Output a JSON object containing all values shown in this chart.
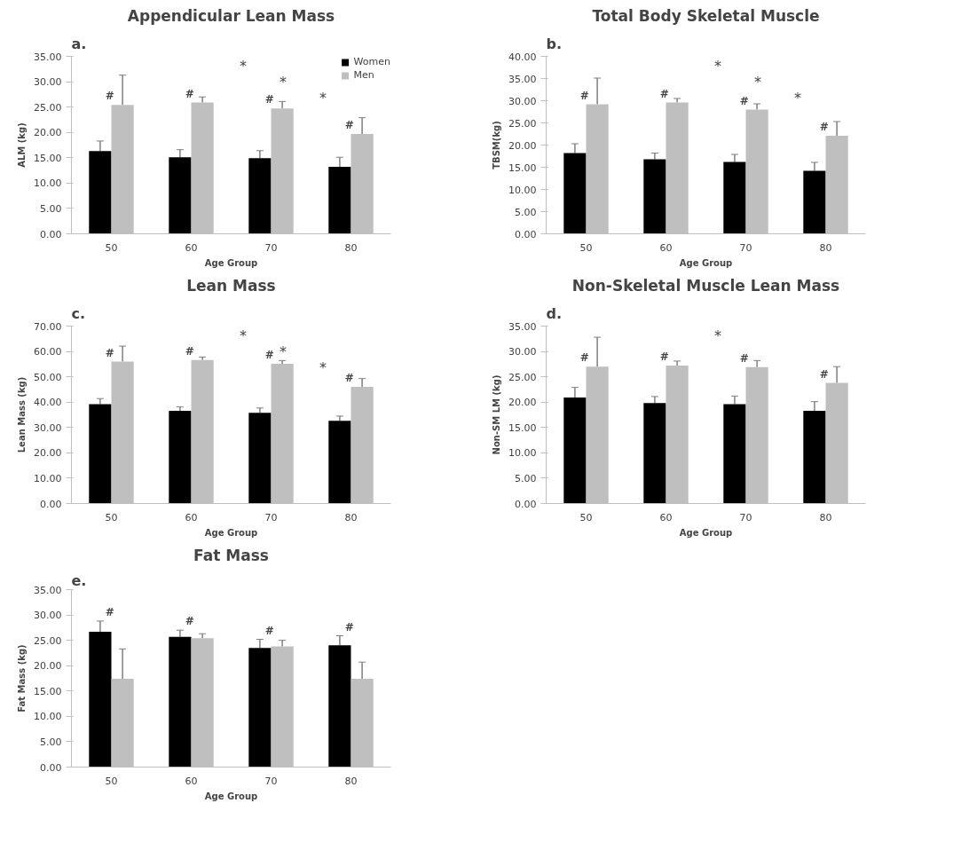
{
  "chart_data": [
    {
      "type": "bar",
      "title": "Appendicular Lean Mass",
      "xlabel": "Age Group",
      "ylabel": "ALM (kg)",
      "categories": [
        "50",
        "60",
        "70",
        "80"
      ],
      "ylim": [
        0,
        35
      ],
      "yticks": [
        {
          "value": 0,
          "label": "0.00"
        },
        {
          "value": 5,
          "label": "5.00"
        },
        {
          "value": 10,
          "label": "10.00"
        },
        {
          "value": 15,
          "label": "15.00"
        },
        {
          "value": 20,
          "label": "20.00"
        },
        {
          "value": 25,
          "label": "25.00"
        },
        {
          "value": 30,
          "label": "30.00"
        },
        {
          "value": 35,
          "label": "35.00"
        }
      ],
      "legend": "top right",
      "grid": false,
      "series": [
        {
          "name": "Women",
          "color": "#000000",
          "values": [
            16.3,
            15.1,
            14.9,
            13.2
          ],
          "errors": [
            [
              16.3,
              18.3
            ],
            [
              15.1,
              16.6
            ],
            [
              14.9,
              16.4
            ],
            [
              13.2,
              15.1
            ]
          ]
        },
        {
          "name": "Men",
          "color": "#bfbfbf",
          "values": [
            25.4,
            25.9,
            24.7,
            19.7
          ],
          "errors": [
            [
              25.4,
              31.3
            ],
            [
              25.9,
              27.0
            ],
            [
              24.7,
              26.1
            ],
            [
              19.7,
              22.9
            ]
          ]
        }
      ],
      "annotations": [
        "a.",
        "*",
        "*",
        "*",
        "#",
        "#",
        "#",
        "#"
      ]
    },
    {
      "type": "bar",
      "title": "Total Body Skeletal Muscle",
      "xlabel": "Age Group",
      "ylabel": "TBSM(kg)",
      "categories": [
        "50",
        "60",
        "70",
        "80"
      ],
      "ylim": [
        0,
        40
      ],
      "yticks": [
        {
          "value": 0,
          "label": "0.00"
        },
        {
          "value": 5,
          "label": "5.00"
        },
        {
          "value": 10,
          "label": "10.00"
        },
        {
          "value": 15,
          "label": "15.00"
        },
        {
          "value": 20,
          "label": "20.00"
        },
        {
          "value": 25,
          "label": "25.00"
        },
        {
          "value": 30,
          "label": "30.00"
        },
        {
          "value": 35,
          "label": "35.00"
        },
        {
          "value": 40,
          "label": "40.00"
        }
      ],
      "grid": false,
      "series": [
        {
          "color": "#000000",
          "values": [
            18.2,
            16.8,
            16.2,
            14.2
          ],
          "errors": [
            [
              18.2,
              20.3
            ],
            [
              16.8,
              18.2
            ],
            [
              16.2,
              17.9
            ],
            [
              14.2,
              16.1
            ]
          ]
        },
        {
          "color": "#bfbfbf",
          "values": [
            29.2,
            29.6,
            28.0,
            22.1
          ],
          "errors": [
            [
              29.2,
              35.1
            ],
            [
              29.6,
              30.5
            ],
            [
              28.0,
              29.3
            ],
            [
              22.1,
              25.3
            ]
          ]
        }
      ],
      "annotations": [
        "b.",
        "*",
        "*",
        "*",
        "#",
        "#",
        "#",
        "#"
      ]
    },
    {
      "type": "bar",
      "title": "Lean Mass",
      "xlabel": "Age Group",
      "ylabel": "Lean Mass (kg)",
      "categories": [
        "50",
        "60",
        "70",
        "80"
      ],
      "ylim": [
        0,
        70
      ],
      "yticks": [
        {
          "value": 0,
          "label": "0.00"
        },
        {
          "value": 10,
          "label": "10.00"
        },
        {
          "value": 20,
          "label": "20.00"
        },
        {
          "value": 30,
          "label": "30.00"
        },
        {
          "value": 40,
          "label": "40.00"
        },
        {
          "value": 50,
          "label": "50.00"
        },
        {
          "value": 60,
          "label": "60.00"
        },
        {
          "value": 70,
          "label": "70.00"
        }
      ],
      "grid": false,
      "series": [
        {
          "color": "#000000",
          "values": [
            39.2,
            36.6,
            35.8,
            32.6
          ],
          "errors": [
            [
              39.2,
              41.4
            ],
            [
              36.6,
              38.1
            ],
            [
              35.8,
              37.7
            ],
            [
              32.6,
              34.5
            ]
          ]
        },
        {
          "color": "#bfbfbf",
          "values": [
            56.0,
            56.6,
            55.1,
            46.0
          ],
          "errors": [
            [
              56.0,
              62.1
            ],
            [
              56.6,
              57.8
            ],
            [
              55.1,
              56.4
            ],
            [
              46.0,
              49.3
            ]
          ]
        }
      ],
      "annotations": [
        "c.",
        "*",
        "*",
        "*",
        "#",
        "#",
        "#",
        "#"
      ]
    },
    {
      "type": "bar",
      "title": "Non-Skeletal Muscle Lean Mass",
      "xlabel": "Age Group",
      "ylabel": "Non-SM LM (kg)",
      "categories": [
        "50",
        "60",
        "70",
        "80"
      ],
      "ylim": [
        0,
        35
      ],
      "yticks": [
        {
          "value": 0,
          "label": "0.00"
        },
        {
          "value": 5,
          "label": "5.00"
        },
        {
          "value": 10,
          "label": "10.00"
        },
        {
          "value": 15,
          "label": "15.00"
        },
        {
          "value": 20,
          "label": "20.00"
        },
        {
          "value": 25,
          "label": "25.00"
        },
        {
          "value": 30,
          "label": "30.00"
        },
        {
          "value": 35,
          "label": "35.00"
        }
      ],
      "grid": false,
      "series": [
        {
          "color": "#000000",
          "values": [
            20.9,
            19.8,
            19.6,
            18.3
          ],
          "errors": [
            [
              20.9,
              22.9
            ],
            [
              19.8,
              21.1
            ],
            [
              19.6,
              21.2
            ],
            [
              18.3,
              20.1
            ]
          ]
        },
        {
          "color": "#bfbfbf",
          "values": [
            27.0,
            27.2,
            26.9,
            23.8
          ],
          "errors": [
            [
              27.0,
              32.8
            ],
            [
              27.2,
              28.1
            ],
            [
              26.9,
              28.2
            ],
            [
              23.8,
              27.0
            ]
          ]
        }
      ],
      "annotations": [
        "d.",
        "*",
        "#",
        "#",
        "#",
        "#"
      ]
    },
    {
      "type": "bar",
      "title": "Fat Mass",
      "xlabel": "Age Group",
      "ylabel": "Fat Mass (kg)",
      "categories": [
        "50",
        "60",
        "70",
        "80"
      ],
      "ylim": [
        0,
        35
      ],
      "yticks": [
        {
          "value": 0,
          "label": "0.00"
        },
        {
          "value": 5,
          "label": "5.00"
        },
        {
          "value": 10,
          "label": "10.00"
        },
        {
          "value": 15,
          "label": "15.00"
        },
        {
          "value": 20,
          "label": "20.00"
        },
        {
          "value": 25,
          "label": "25.00"
        },
        {
          "value": 30,
          "label": "30.00"
        },
        {
          "value": 35,
          "label": "35.00"
        }
      ],
      "grid": false,
      "series": [
        {
          "color": "#000000",
          "values": [
            26.7,
            25.7,
            23.5,
            24.0
          ],
          "errors": [
            [
              26.7,
              28.8
            ],
            [
              25.7,
              27.0
            ],
            [
              23.5,
              25.2
            ],
            [
              24.0,
              25.9
            ]
          ]
        },
        {
          "color": "#bfbfbf",
          "values": [
            17.4,
            25.4,
            23.8,
            17.4
          ],
          "errors": [
            [
              17.4,
              23.3
            ],
            [
              25.4,
              26.3
            ],
            [
              23.8,
              25.0
            ],
            [
              17.4,
              20.7
            ]
          ]
        }
      ],
      "annotations": [
        "e.",
        "#",
        "#",
        "#",
        "#"
      ]
    }
  ]
}
